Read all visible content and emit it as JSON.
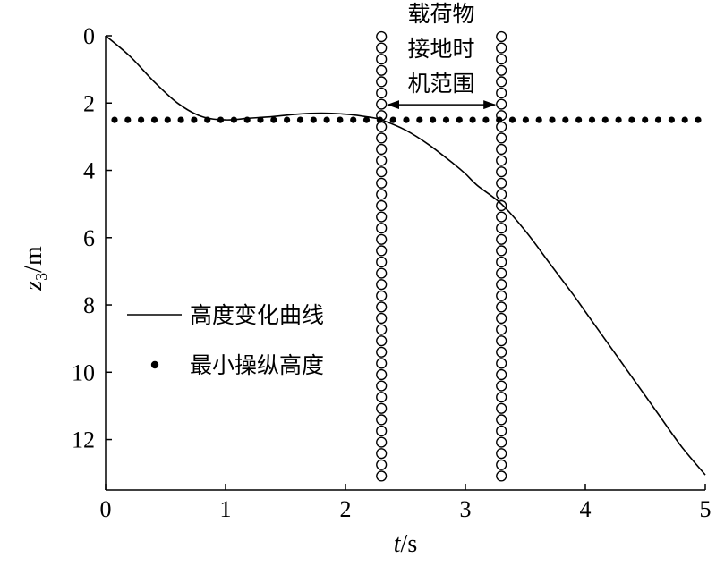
{
  "chart_data": {
    "type": "line",
    "title": "",
    "xlabel_italic": "t",
    "xlabel_unit": "/s",
    "ylabel_main": "z",
    "ylabel_sub": "3",
    "ylabel_unit": "/m",
    "xlim": [
      0,
      5
    ],
    "ylim": [
      0,
      13.5
    ],
    "y_inverted": true,
    "grid": false,
    "xticks": [
      0,
      1,
      2,
      3,
      4,
      5
    ],
    "yticks": [
      0,
      2,
      4,
      6,
      8,
      10,
      12
    ],
    "legend_position": "left-center",
    "series": [
      {
        "name": "高度变化曲线",
        "style": "solid",
        "color": "#000000",
        "x": [
          0,
          0.2,
          0.4,
          0.6,
          0.8,
          1.0,
          1.2,
          1.4,
          1.6,
          1.8,
          2.0,
          2.2,
          2.3,
          2.5,
          2.7,
          2.9,
          3.0,
          3.1,
          3.3,
          3.5,
          3.7,
          3.9,
          4.0,
          4.2,
          4.4,
          4.6,
          4.8,
          5.0
        ],
        "y": [
          0,
          0.6,
          1.35,
          2.0,
          2.4,
          2.5,
          2.45,
          2.4,
          2.33,
          2.3,
          2.33,
          2.42,
          2.5,
          2.8,
          3.25,
          3.8,
          4.1,
          4.45,
          5.0,
          5.8,
          6.75,
          7.7,
          8.2,
          9.2,
          10.2,
          11.2,
          12.2,
          13.05
        ]
      },
      {
        "name": "最小操纵高度",
        "style": "dotted",
        "color": "#000000",
        "x": [
          0,
          5
        ],
        "y": [
          2.5,
          2.5
        ]
      }
    ],
    "annotations": [
      {
        "type": "vertical-circle-line",
        "x": 2.3
      },
      {
        "type": "vertical-circle-line",
        "x": 3.3
      },
      {
        "type": "double-arrow",
        "x_from": 2.3,
        "x_to": 3.3,
        "y": 2.05
      },
      {
        "type": "text",
        "lines": [
          "载荷物",
          "接地时",
          "机范围"
        ]
      }
    ]
  }
}
